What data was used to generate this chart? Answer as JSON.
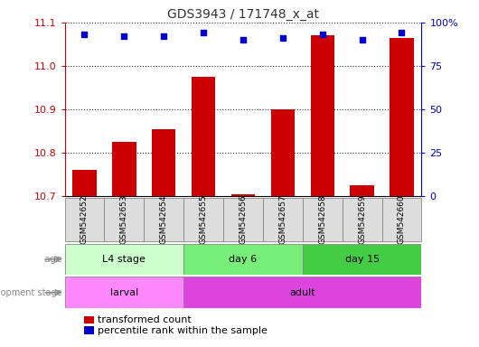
{
  "title": "GDS3943 / 171748_x_at",
  "samples": [
    "GSM542652",
    "GSM542653",
    "GSM542654",
    "GSM542655",
    "GSM542656",
    "GSM542657",
    "GSM542658",
    "GSM542659",
    "GSM542660"
  ],
  "bar_values": [
    10.76,
    10.825,
    10.855,
    10.975,
    10.705,
    10.9,
    11.07,
    10.725,
    11.065
  ],
  "percentile_values": [
    93,
    92,
    92,
    94,
    90,
    91,
    93,
    90,
    94
  ],
  "ylim": [
    10.7,
    11.1
  ],
  "yticks": [
    10.7,
    10.8,
    10.9,
    11.0,
    11.1
  ],
  "right_yticks": [
    0,
    25,
    50,
    75,
    100
  ],
  "right_ylim": [
    0,
    100
  ],
  "bar_color": "#cc0000",
  "dot_color": "#0000cc",
  "age_groups": [
    {
      "label": "L4 stage",
      "start": 0,
      "end": 3,
      "color": "#ccffcc"
    },
    {
      "label": "day 6",
      "start": 3,
      "end": 6,
      "color": "#77ee77"
    },
    {
      "label": "day 15",
      "start": 6,
      "end": 9,
      "color": "#44cc44"
    }
  ],
  "dev_groups": [
    {
      "label": "larval",
      "start": 0,
      "end": 3,
      "color": "#ff88ff"
    },
    {
      "label": "adult",
      "start": 3,
      "end": 9,
      "color": "#dd44dd"
    }
  ],
  "legend_bar_label": "transformed count",
  "legend_dot_label": "percentile rank within the sample",
  "title_color": "#333333",
  "left_tick_color": "#cc0000",
  "right_tick_color": "#0000cc",
  "sample_box_color": "#dddddd"
}
